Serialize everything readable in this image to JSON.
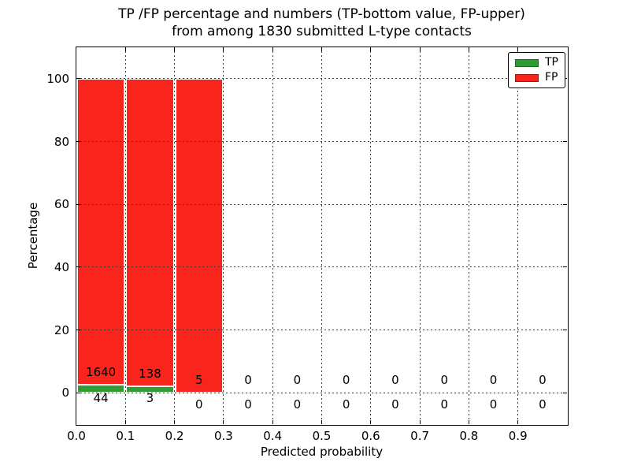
{
  "chart_data": {
    "type": "bar",
    "stacked": true,
    "title_lines": [
      "TP /FP percentage and numbers (TP-bottom value, FP-upper)",
      "from among 1830 submitted L-type contacts"
    ],
    "xlabel": "Predicted probability",
    "ylabel": "Percentage",
    "xlim": [
      0.0,
      1.0
    ],
    "ylim": [
      -10,
      110
    ],
    "grid": true,
    "total_contacts": 1830,
    "colors": {
      "tp": "#2e9e32",
      "fp": "#f9241b"
    },
    "legend": {
      "position": "upper right",
      "entries": [
        {
          "label": "TP",
          "color": "#2e9e32"
        },
        {
          "label": "FP",
          "color": "#f9241b"
        }
      ]
    },
    "xticks": [
      {
        "value": 0.0,
        "label": "0.0"
      },
      {
        "value": 0.1,
        "label": "0.1"
      },
      {
        "value": 0.2,
        "label": "0.2"
      },
      {
        "value": 0.3,
        "label": "0.3"
      },
      {
        "value": 0.4,
        "label": "0.4"
      },
      {
        "value": 0.5,
        "label": "0.5"
      },
      {
        "value": 0.6,
        "label": "0.6"
      },
      {
        "value": 0.7,
        "label": "0.7"
      },
      {
        "value": 0.8,
        "label": "0.8"
      },
      {
        "value": 0.9,
        "label": "0.9"
      }
    ],
    "yticks": [
      {
        "value": 0,
        "label": "0"
      },
      {
        "value": 20,
        "label": "20"
      },
      {
        "value": 40,
        "label": "40"
      },
      {
        "value": 60,
        "label": "60"
      },
      {
        "value": 80,
        "label": "80"
      },
      {
        "value": 100,
        "label": "100"
      }
    ],
    "bins": [
      {
        "x_range": [
          0.0,
          0.1
        ],
        "tp": 44,
        "fp": 1640
      },
      {
        "x_range": [
          0.1,
          0.2
        ],
        "tp": 3,
        "fp": 138
      },
      {
        "x_range": [
          0.2,
          0.3
        ],
        "tp": 0,
        "fp": 5
      },
      {
        "x_range": [
          0.3,
          0.4
        ],
        "tp": 0,
        "fp": 0
      },
      {
        "x_range": [
          0.4,
          0.5
        ],
        "tp": 0,
        "fp": 0
      },
      {
        "x_range": [
          0.5,
          0.6
        ],
        "tp": 0,
        "fp": 0
      },
      {
        "x_range": [
          0.6,
          0.7
        ],
        "tp": 0,
        "fp": 0
      },
      {
        "x_range": [
          0.7,
          0.8
        ],
        "tp": 0,
        "fp": 0
      },
      {
        "x_range": [
          0.8,
          0.9
        ],
        "tp": 0,
        "fp": 0
      },
      {
        "x_range": [
          0.9,
          1.0
        ],
        "tp": 0,
        "fp": 0
      }
    ]
  }
}
